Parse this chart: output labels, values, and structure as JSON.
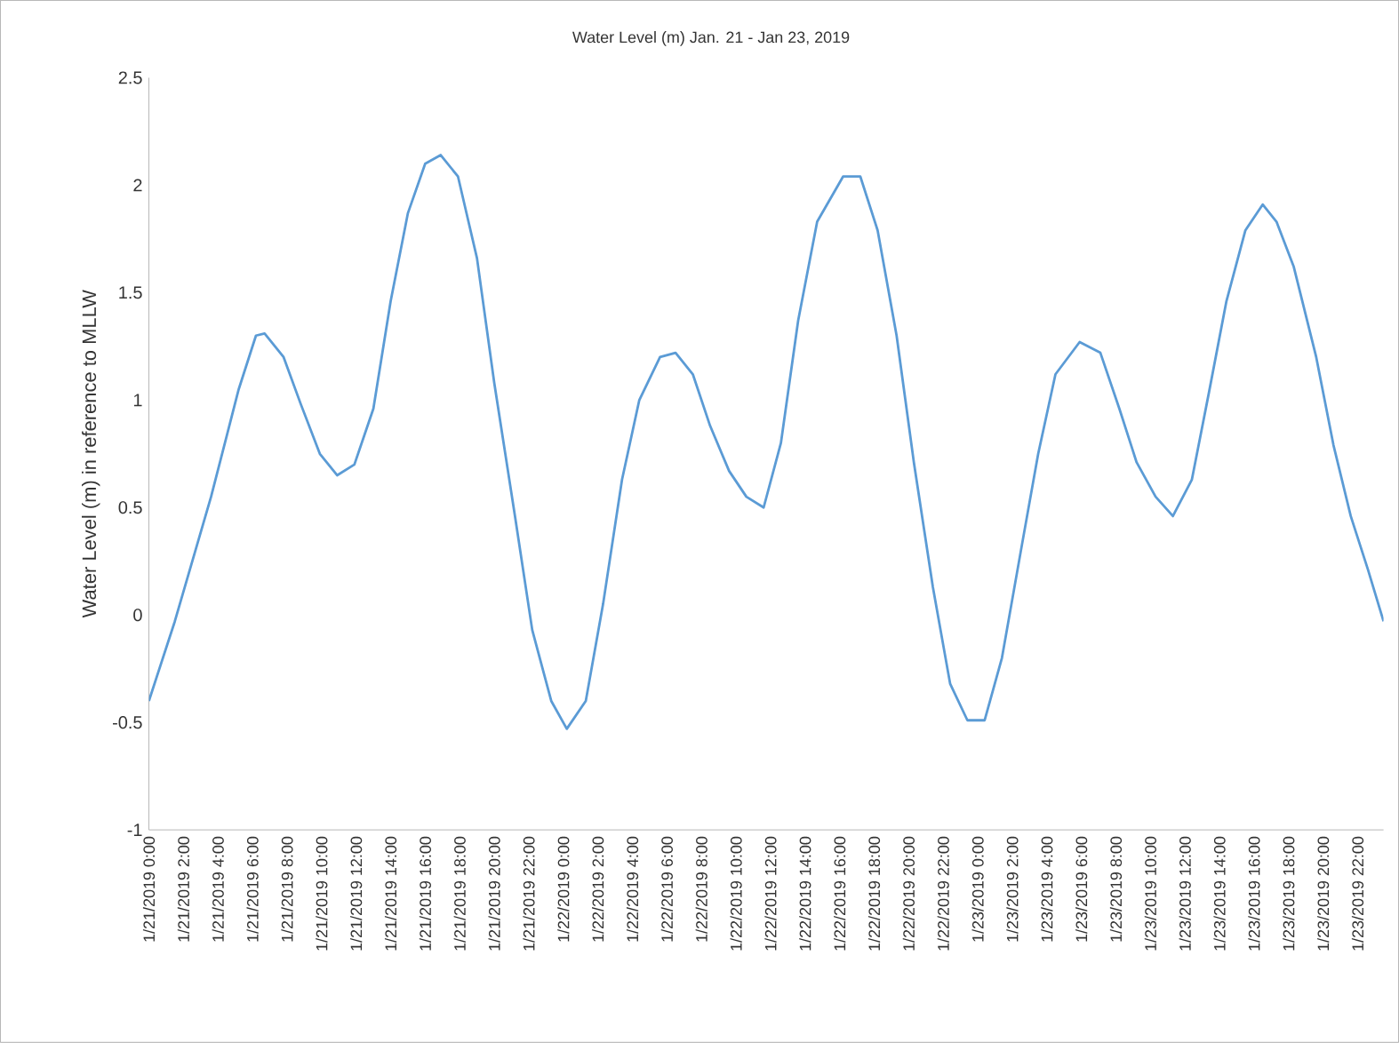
{
  "chart_data": {
    "type": "line",
    "title": "Water Level (m) Jan. 21 - Jan 23, 2019",
    "ylabel": "Water Level (m) in reference to MLLW",
    "color": "#5b9bd5",
    "grid": false,
    "marker": "none",
    "line_style": "solid",
    "x": [
      "2019-01-21T00:00",
      "2019-01-21T01:30",
      "2019-01-21T03:36",
      "2019-01-21T05:12",
      "2019-01-21T06:12",
      "2019-01-21T06:42",
      "2019-01-21T07:48",
      "2019-01-21T08:48",
      "2019-01-21T09:54",
      "2019-01-21T10:54",
      "2019-01-21T11:54",
      "2019-01-21T13:00",
      "2019-01-21T14:00",
      "2019-01-21T15:00",
      "2019-01-21T16:00",
      "2019-01-21T16:54",
      "2019-01-21T17:54",
      "2019-01-21T19:00",
      "2019-01-21T20:00",
      "2019-01-21T21:12",
      "2019-01-21T22:12",
      "2019-01-21T23:18",
      "2019-01-22T00:12",
      "2019-01-22T01:18",
      "2019-01-22T02:18",
      "2019-01-22T03:24",
      "2019-01-22T04:24",
      "2019-01-22T05:36",
      "2019-01-22T06:30",
      "2019-01-22T07:30",
      "2019-01-22T08:30",
      "2019-01-22T09:36",
      "2019-01-22T10:36",
      "2019-01-22T11:36",
      "2019-01-22T12:36",
      "2019-01-22T13:36",
      "2019-01-22T14:42",
      "2019-01-22T16:12",
      "2019-01-22T17:12",
      "2019-01-22T18:12",
      "2019-01-22T19:18",
      "2019-01-22T20:18",
      "2019-01-22T21:24",
      "2019-01-22T22:24",
      "2019-01-22T23:24",
      "2019-01-23T00:24",
      "2019-01-23T01:24",
      "2019-01-23T02:30",
      "2019-01-23T03:30",
      "2019-01-23T04:30",
      "2019-01-23T05:54",
      "2019-01-23T07:06",
      "2019-01-23T08:12",
      "2019-01-23T09:12",
      "2019-01-23T10:18",
      "2019-01-23T11:18",
      "2019-01-23T12:24",
      "2019-01-23T13:24",
      "2019-01-23T14:24",
      "2019-01-23T15:30",
      "2019-01-23T16:30",
      "2019-01-23T17:18",
      "2019-01-23T18:18",
      "2019-01-23T19:36",
      "2019-01-23T20:36",
      "2019-01-23T21:36",
      "2019-01-23T22:36",
      "2019-01-23T23:30"
    ],
    "values": [
      -0.4,
      -0.03,
      0.55,
      1.05,
      1.3,
      1.31,
      1.2,
      0.98,
      0.75,
      0.65,
      0.7,
      0.96,
      1.46,
      1.87,
      2.1,
      2.14,
      2.04,
      1.66,
      1.08,
      0.46,
      -0.07,
      -0.4,
      -0.53,
      -0.4,
      0.05,
      0.63,
      1.0,
      1.2,
      1.22,
      1.12,
      0.88,
      0.67,
      0.55,
      0.5,
      0.8,
      1.37,
      1.83,
      2.04,
      2.04,
      1.79,
      1.3,
      0.71,
      0.13,
      -0.32,
      -0.49,
      -0.49,
      -0.2,
      0.3,
      0.75,
      1.12,
      1.27,
      1.22,
      0.96,
      0.71,
      0.55,
      0.46,
      0.63,
      1.04,
      1.46,
      1.79,
      1.91,
      1.83,
      1.62,
      1.2,
      0.79,
      0.46,
      0.21,
      -0.03
    ],
    "xlim": [
      "2019-01-21T00:00",
      "2019-01-23T23:30"
    ],
    "xticks": [
      {
        "value": "2019-01-21T00:00",
        "label": "1/21/2019 0:00"
      },
      {
        "value": "2019-01-21T02:00",
        "label": "1/21/2019 2:00"
      },
      {
        "value": "2019-01-21T04:00",
        "label": "1/21/2019 4:00"
      },
      {
        "value": "2019-01-21T06:00",
        "label": "1/21/2019 6:00"
      },
      {
        "value": "2019-01-21T08:00",
        "label": "1/21/2019 8:00"
      },
      {
        "value": "2019-01-21T10:00",
        "label": "1/21/2019 10:00"
      },
      {
        "value": "2019-01-21T12:00",
        "label": "1/21/2019 12:00"
      },
      {
        "value": "2019-01-21T14:00",
        "label": "1/21/2019 14:00"
      },
      {
        "value": "2019-01-21T16:00",
        "label": "1/21/2019 16:00"
      },
      {
        "value": "2019-01-21T18:00",
        "label": "1/21/2019 18:00"
      },
      {
        "value": "2019-01-21T20:00",
        "label": "1/21/2019 20:00"
      },
      {
        "value": "2019-01-21T22:00",
        "label": "1/21/2019 22:00"
      },
      {
        "value": "2019-01-22T00:00",
        "label": "1/22/2019 0:00"
      },
      {
        "value": "2019-01-22T02:00",
        "label": "1/22/2019 2:00"
      },
      {
        "value": "2019-01-22T04:00",
        "label": "1/22/2019 4:00"
      },
      {
        "value": "2019-01-22T06:00",
        "label": "1/22/2019 6:00"
      },
      {
        "value": "2019-01-22T08:00",
        "label": "1/22/2019 8:00"
      },
      {
        "value": "2019-01-22T10:00",
        "label": "1/22/2019 10:00"
      },
      {
        "value": "2019-01-22T12:00",
        "label": "1/22/2019 12:00"
      },
      {
        "value": "2019-01-22T14:00",
        "label": "1/22/2019 14:00"
      },
      {
        "value": "2019-01-22T16:00",
        "label": "1/22/2019 16:00"
      },
      {
        "value": "2019-01-22T18:00",
        "label": "1/22/2019 18:00"
      },
      {
        "value": "2019-01-22T20:00",
        "label": "1/22/2019 20:00"
      },
      {
        "value": "2019-01-22T22:00",
        "label": "1/22/2019 22:00"
      },
      {
        "value": "2019-01-23T00:00",
        "label": "1/23/2019 0:00"
      },
      {
        "value": "2019-01-23T02:00",
        "label": "1/23/2019 2:00"
      },
      {
        "value": "2019-01-23T04:00",
        "label": "1/23/2019 4:00"
      },
      {
        "value": "2019-01-23T06:00",
        "label": "1/23/2019 6:00"
      },
      {
        "value": "2019-01-23T08:00",
        "label": "1/23/2019 8:00"
      },
      {
        "value": "2019-01-23T10:00",
        "label": "1/23/2019 10:00"
      },
      {
        "value": "2019-01-23T12:00",
        "label": "1/23/2019 12:00"
      },
      {
        "value": "2019-01-23T14:00",
        "label": "1/23/2019 14:00"
      },
      {
        "value": "2019-01-23T16:00",
        "label": "1/23/2019 16:00"
      },
      {
        "value": "2019-01-23T18:00",
        "label": "1/23/2019 18:00"
      },
      {
        "value": "2019-01-23T20:00",
        "label": "1/23/2019 20:00"
      },
      {
        "value": "2019-01-23T22:00",
        "label": "1/23/2019 22:00"
      }
    ],
    "ylim": [
      -1,
      2.5
    ],
    "yticks": [
      -1,
      -0.5,
      0,
      0.5,
      1,
      1.5,
      2,
      2.5
    ]
  }
}
